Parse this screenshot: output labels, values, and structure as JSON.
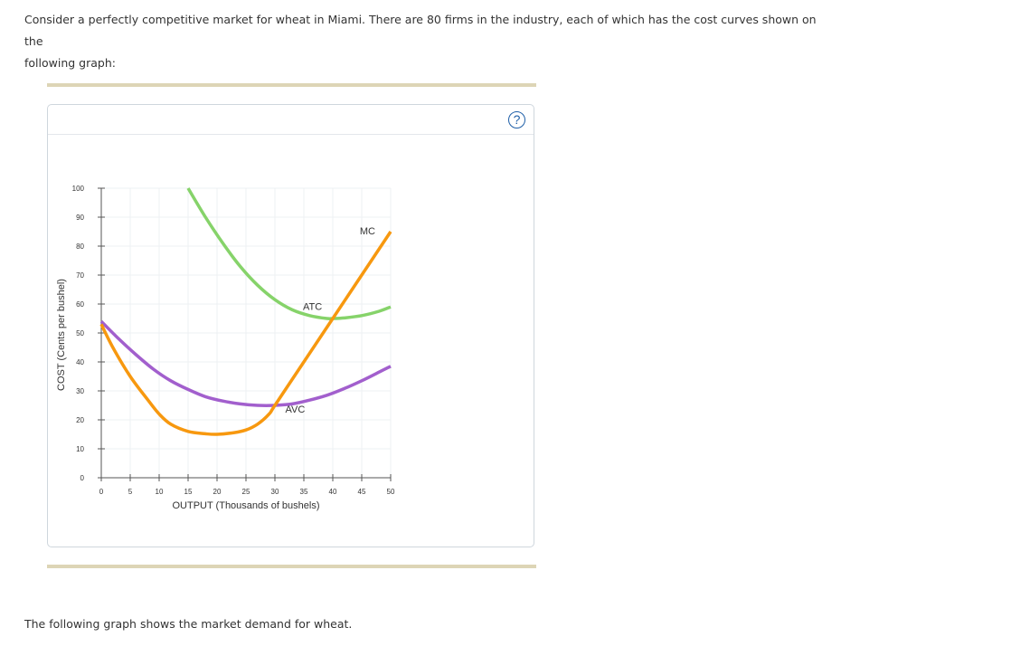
{
  "intro": {
    "line1": "Consider a perfectly competitive market for wheat in Miami. There are 80 firms in the industry, each of which has the cost curves shown on the",
    "line2": "following graph:"
  },
  "help_label": "?",
  "outro_text": "The following graph shows the market demand for wheat.",
  "colors": {
    "mc": "#f7980f",
    "atc": "#86d36a",
    "avc": "#a25fcd",
    "grid": "#eef0f3",
    "rule": "#ddd5b6",
    "help": "#1f5fa8"
  },
  "chart_data": {
    "type": "line",
    "xlabel": "OUTPUT (Thousands of bushels)",
    "ylabel": "COST (Cents per bushel)",
    "xlim": [
      0,
      50
    ],
    "ylim": [
      0,
      100
    ],
    "x_ticks": [
      0,
      5,
      10,
      15,
      20,
      25,
      30,
      35,
      40,
      45,
      50
    ],
    "y_ticks": [
      0,
      10,
      20,
      30,
      40,
      50,
      60,
      70,
      80,
      90,
      100
    ],
    "grid": true,
    "series": [
      {
        "name": "MC",
        "color": "#f7980f",
        "points": [
          [
            0,
            53
          ],
          [
            2,
            45
          ],
          [
            5,
            35
          ],
          [
            8,
            27
          ],
          [
            10,
            22
          ],
          [
            12,
            18.5
          ],
          [
            15,
            16
          ],
          [
            18,
            15.2
          ],
          [
            20,
            15
          ],
          [
            23,
            15.6
          ],
          [
            25,
            16.5
          ],
          [
            27,
            18.5
          ],
          [
            29,
            22
          ],
          [
            30,
            25
          ],
          [
            35,
            40
          ],
          [
            40,
            55
          ],
          [
            45,
            70
          ],
          [
            50,
            85
          ]
        ]
      },
      {
        "name": "ATC",
        "color": "#86d36a",
        "points": [
          [
            15,
            100
          ],
          [
            18,
            90
          ],
          [
            21,
            81
          ],
          [
            24,
            73
          ],
          [
            27,
            66.5
          ],
          [
            30,
            61.5
          ],
          [
            33,
            58
          ],
          [
            36,
            56
          ],
          [
            39,
            55
          ],
          [
            40,
            55
          ],
          [
            42,
            55.2
          ],
          [
            45,
            56
          ],
          [
            48,
            57.5
          ],
          [
            50,
            59
          ]
        ]
      },
      {
        "name": "AVC",
        "color": "#a25fcd",
        "points": [
          [
            0,
            54
          ],
          [
            3,
            48
          ],
          [
            6,
            42.5
          ],
          [
            9,
            37.5
          ],
          [
            12,
            33.5
          ],
          [
            15,
            30.5
          ],
          [
            18,
            28
          ],
          [
            21,
            26.5
          ],
          [
            24,
            25.5
          ],
          [
            27,
            25
          ],
          [
            30,
            25
          ],
          [
            33,
            25.5
          ],
          [
            36,
            26.8
          ],
          [
            39,
            28.5
          ],
          [
            42,
            30.8
          ],
          [
            45,
            33.5
          ],
          [
            48,
            36.5
          ],
          [
            50,
            38.5
          ]
        ]
      }
    ],
    "curve_labels": [
      {
        "text": "MC",
        "x": 46,
        "y": 84
      },
      {
        "text": "ATC",
        "x": 36.5,
        "y": 58
      },
      {
        "text": "AVC",
        "x": 33.5,
        "y": 22.5
      }
    ]
  }
}
